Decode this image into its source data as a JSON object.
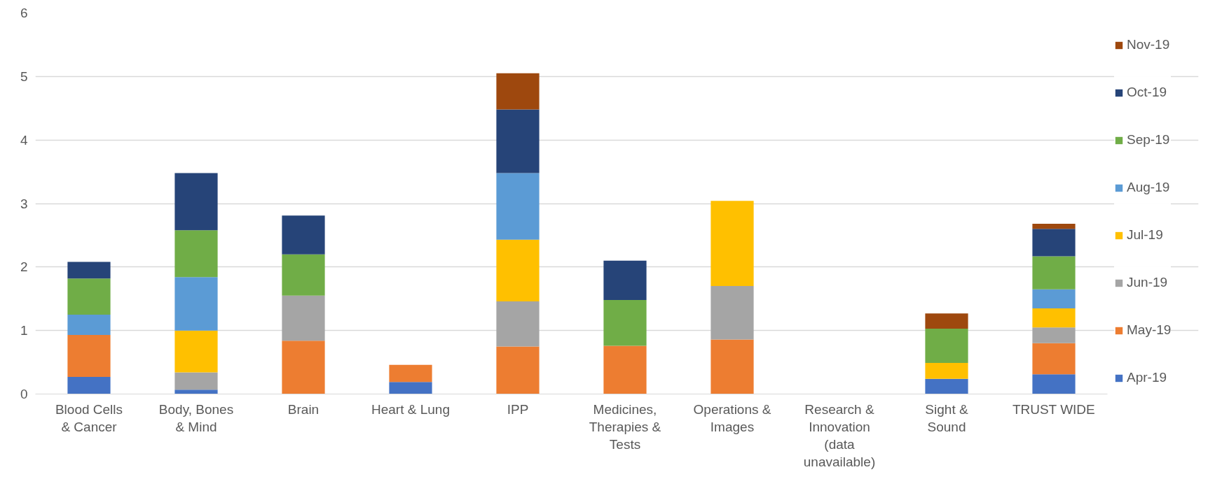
{
  "chart_data": {
    "type": "bar",
    "stacked": true,
    "categories": [
      "Blood Cells & Cancer",
      "Body, Bones & Mind",
      "Brain",
      "Heart & Lung",
      "IPP",
      "Medicines, Therapies & Tests",
      "Operations & Images",
      "Research & Innovation (data unavailable)",
      "Sight & Sound",
      "TRUST WIDE"
    ],
    "series": [
      {
        "name": "Apr-19",
        "color": "#4472c4",
        "values": [
          0.27,
          0.07,
          null,
          0.19,
          null,
          null,
          null,
          null,
          0.24,
          0.31
        ]
      },
      {
        "name": "May-19",
        "color": "#ed7d31",
        "values": [
          0.66,
          null,
          0.84,
          0.27,
          0.75,
          0.76,
          0.86,
          null,
          null,
          0.49
        ]
      },
      {
        "name": "Jun-19",
        "color": "#a5a5a5",
        "values": [
          null,
          0.27,
          0.71,
          null,
          0.71,
          null,
          0.84,
          null,
          null,
          0.25
        ]
      },
      {
        "name": "Jul-19",
        "color": "#ffc000",
        "values": [
          null,
          0.66,
          null,
          null,
          0.97,
          null,
          1.34,
          null,
          0.25,
          0.3
        ]
      },
      {
        "name": "Aug-19",
        "color": "#5b9bd5",
        "values": [
          0.32,
          0.84,
          null,
          null,
          1.05,
          null,
          null,
          null,
          null,
          0.3
        ]
      },
      {
        "name": "Sep-19",
        "color": "#70ad47",
        "values": [
          0.57,
          0.74,
          0.65,
          null,
          null,
          0.72,
          null,
          null,
          0.54,
          0.52
        ]
      },
      {
        "name": "Oct-19",
        "color": "#264478",
        "values": [
          0.26,
          0.9,
          0.61,
          null,
          1.0,
          0.62,
          null,
          null,
          null,
          0.43
        ]
      },
      {
        "name": "Nov-19",
        "color": "#9e480e",
        "values": [
          null,
          null,
          null,
          null,
          0.57,
          null,
          null,
          null,
          0.24,
          0.08
        ]
      }
    ],
    "ylim": [
      0,
      6
    ],
    "yticks": [
      0,
      1,
      2,
      3,
      4,
      5,
      6
    ],
    "grid": "y",
    "legend": "right"
  }
}
